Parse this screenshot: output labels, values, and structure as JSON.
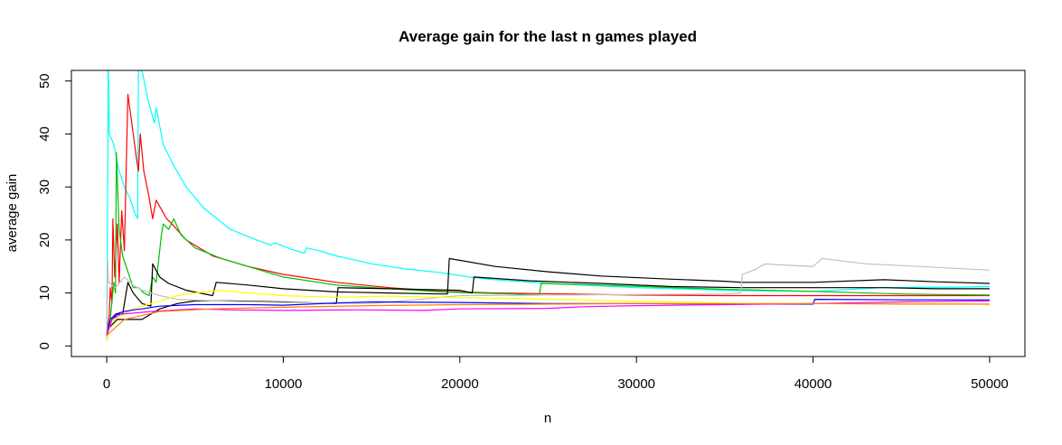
{
  "chart_data": {
    "type": "line",
    "title": "Average gain for the last n games played",
    "xlabel": "n",
    "ylabel": "average gain",
    "xlim": [
      -2000,
      52000
    ],
    "ylim": [
      -2,
      52
    ],
    "xticks": [
      "0",
      "10000",
      "20000",
      "30000",
      "40000",
      "50000"
    ],
    "xtick_values": [
      0,
      10000,
      20000,
      30000,
      40000,
      50000
    ],
    "yticks": [
      "0",
      "10",
      "20",
      "30",
      "40",
      "50"
    ],
    "ytick_values": [
      0,
      10,
      20,
      30,
      40,
      50
    ],
    "grid": false,
    "series": [
      {
        "color": "#00ffff",
        "points": [
          [
            0,
            1
          ],
          [
            50,
            30
          ],
          [
            90,
            55
          ],
          [
            100,
            52
          ],
          [
            150,
            40
          ],
          [
            400,
            38
          ],
          [
            700,
            33
          ],
          [
            1000,
            30
          ],
          [
            1300,
            28
          ],
          [
            1600,
            25
          ],
          [
            1750,
            24
          ],
          [
            1800,
            52
          ],
          [
            2000,
            52
          ],
          [
            2300,
            47
          ],
          [
            2700,
            42
          ],
          [
            2800,
            45
          ],
          [
            3200,
            38
          ],
          [
            3800,
            34
          ],
          [
            4500,
            30
          ],
          [
            5500,
            26
          ],
          [
            7000,
            22
          ],
          [
            8500,
            20
          ],
          [
            9300,
            19
          ],
          [
            9500,
            19.5
          ],
          [
            10500,
            18.2
          ],
          [
            11200,
            17.5
          ],
          [
            11300,
            18.5
          ],
          [
            12000,
            18
          ],
          [
            13000,
            17
          ],
          [
            15000,
            15.5
          ],
          [
            17000,
            14.5
          ],
          [
            19000,
            13.8
          ],
          [
            20500,
            13
          ],
          [
            22000,
            12.5
          ],
          [
            25000,
            11.8
          ],
          [
            30000,
            11
          ],
          [
            35000,
            10.5
          ],
          [
            40000,
            10.3
          ],
          [
            44000,
            11
          ],
          [
            48000,
            11.1
          ],
          [
            50000,
            11.2
          ]
        ]
      },
      {
        "color": "#ff0000",
        "points": [
          [
            0,
            2
          ],
          [
            150,
            6
          ],
          [
            200,
            11
          ],
          [
            300,
            8
          ],
          [
            350,
            24
          ],
          [
            450,
            13
          ],
          [
            600,
            23
          ],
          [
            700,
            12
          ],
          [
            850,
            25.5
          ],
          [
            1000,
            18
          ],
          [
            1200,
            47.5
          ],
          [
            1500,
            40
          ],
          [
            1700,
            35
          ],
          [
            1800,
            33
          ],
          [
            1900,
            40
          ],
          [
            2100,
            33
          ],
          [
            2400,
            28
          ],
          [
            2600,
            24
          ],
          [
            2800,
            27.5
          ],
          [
            3400,
            24
          ],
          [
            3700,
            23
          ],
          [
            4500,
            20
          ],
          [
            6000,
            17
          ],
          [
            8000,
            15
          ],
          [
            10000,
            13.5
          ],
          [
            13000,
            12
          ],
          [
            16000,
            11
          ],
          [
            19000,
            10.3
          ],
          [
            22000,
            10
          ],
          [
            26000,
            9.8
          ],
          [
            30000,
            9.6
          ],
          [
            35000,
            9.5
          ],
          [
            40000,
            9.5
          ],
          [
            45000,
            9.5
          ],
          [
            50000,
            9.5
          ]
        ]
      },
      {
        "color": "#00c000",
        "points": [
          [
            0,
            2
          ],
          [
            200,
            5
          ],
          [
            400,
            12
          ],
          [
            500,
            10
          ],
          [
            550,
            36.5
          ],
          [
            700,
            22
          ],
          [
            900,
            17
          ],
          [
            1200,
            14
          ],
          [
            1500,
            11
          ],
          [
            1800,
            11
          ],
          [
            2100,
            10
          ],
          [
            2400,
            9.5
          ],
          [
            2600,
            13
          ],
          [
            2800,
            12
          ],
          [
            3100,
            21
          ],
          [
            3200,
            23
          ],
          [
            3500,
            22
          ],
          [
            3800,
            24
          ],
          [
            4200,
            21
          ],
          [
            5000,
            18.5
          ],
          [
            6500,
            16.5
          ],
          [
            8000,
            15
          ],
          [
            10000,
            13
          ],
          [
            13000,
            11.5
          ],
          [
            16000,
            10.8
          ],
          [
            19000,
            10.2
          ],
          [
            21000,
            10
          ],
          [
            23000,
            9.8
          ],
          [
            24500,
            9.6
          ],
          [
            24600,
            11.8
          ],
          [
            28000,
            11.5
          ],
          [
            32000,
            11
          ],
          [
            36000,
            10.6
          ],
          [
            40000,
            10.3
          ],
          [
            45000,
            9.8
          ],
          [
            50000,
            9.6
          ]
        ]
      },
      {
        "color": "#000000",
        "points": [
          [
            0,
            2
          ],
          [
            300,
            5
          ],
          [
            600,
            6
          ],
          [
            900,
            6
          ],
          [
            1200,
            12
          ],
          [
            1500,
            10
          ],
          [
            2000,
            8
          ],
          [
            2500,
            7.5
          ],
          [
            2600,
            15.5
          ],
          [
            3000,
            13
          ],
          [
            3500,
            11.8
          ],
          [
            4500,
            10.5
          ],
          [
            6000,
            9.5
          ],
          [
            6200,
            12
          ],
          [
            8000,
            11.5
          ],
          [
            10000,
            10.8
          ],
          [
            13000,
            10.2
          ],
          [
            16000,
            10
          ],
          [
            19000,
            9.8
          ],
          [
            19300,
            9.8
          ],
          [
            19400,
            16.5
          ],
          [
            22000,
            15
          ],
          [
            25000,
            14
          ],
          [
            28000,
            13.2
          ],
          [
            32000,
            12.6
          ],
          [
            35000,
            12.2
          ],
          [
            36000,
            12
          ],
          [
            40000,
            12
          ],
          [
            44000,
            12.5
          ],
          [
            47000,
            12.1
          ],
          [
            50000,
            11.8
          ]
        ]
      },
      {
        "color": "#000000",
        "points": [
          [
            0,
            3
          ],
          [
            300,
            4
          ],
          [
            600,
            5
          ],
          [
            1000,
            5
          ],
          [
            1500,
            5
          ],
          [
            2000,
            5
          ],
          [
            2500,
            6
          ],
          [
            3000,
            7
          ],
          [
            4000,
            8
          ],
          [
            5000,
            8.5
          ],
          [
            7000,
            8.5
          ],
          [
            10000,
            8.3
          ],
          [
            13000,
            8
          ],
          [
            13100,
            11
          ],
          [
            16000,
            10.8
          ],
          [
            20000,
            10.5
          ],
          [
            20700,
            10
          ],
          [
            20800,
            13
          ],
          [
            24000,
            12.3
          ],
          [
            28000,
            11.8
          ],
          [
            32000,
            11.2
          ],
          [
            36000,
            11
          ],
          [
            40000,
            11
          ],
          [
            44000,
            11
          ],
          [
            47000,
            10.8
          ],
          [
            50000,
            10.8
          ]
        ]
      },
      {
        "color": "#c0c0c0",
        "points": [
          [
            0,
            1
          ],
          [
            50,
            16
          ],
          [
            100,
            12
          ],
          [
            500,
            11
          ],
          [
            1000,
            13
          ],
          [
            1500,
            11.5
          ],
          [
            2000,
            10.5
          ],
          [
            3000,
            9.5
          ],
          [
            4000,
            8.8
          ],
          [
            6000,
            8.5
          ],
          [
            10000,
            8.2
          ],
          [
            15000,
            8
          ],
          [
            20000,
            9.5
          ],
          [
            30000,
            9.7
          ],
          [
            35000,
            9.8
          ],
          [
            35900,
            10
          ],
          [
            36000,
            13.5
          ],
          [
            36800,
            14.5
          ],
          [
            37000,
            15
          ],
          [
            37300,
            15.5
          ],
          [
            38000,
            15.3
          ],
          [
            40000,
            15
          ],
          [
            40500,
            16.5
          ],
          [
            43000,
            15.5
          ],
          [
            46000,
            15
          ],
          [
            50000,
            14.3
          ]
        ]
      },
      {
        "color": "#ffff00",
        "points": [
          [
            0,
            1
          ],
          [
            200,
            4
          ],
          [
            500,
            5
          ],
          [
            1000,
            6
          ],
          [
            1500,
            7
          ],
          [
            2000,
            7.5
          ],
          [
            3000,
            8.5
          ],
          [
            4000,
            9.5
          ],
          [
            5000,
            10
          ],
          [
            6500,
            10.5
          ],
          [
            8000,
            10
          ],
          [
            10000,
            9.5
          ],
          [
            13000,
            9.2
          ],
          [
            16000,
            9.4
          ],
          [
            20000,
            9.1
          ],
          [
            24000,
            8.9
          ],
          [
            28000,
            8.6
          ],
          [
            30000,
            8.4
          ],
          [
            32000,
            8.3
          ],
          [
            36000,
            8
          ],
          [
            40000,
            8
          ],
          [
            44000,
            8
          ],
          [
            48000,
            8
          ],
          [
            50000,
            7.8
          ]
        ]
      },
      {
        "color": "#0000ff",
        "points": [
          [
            0,
            2
          ],
          [
            200,
            5
          ],
          [
            500,
            6
          ],
          [
            1000,
            6.5
          ],
          [
            1500,
            6.8
          ],
          [
            2000,
            7
          ],
          [
            3000,
            7.5
          ],
          [
            5000,
            7.8
          ],
          [
            8000,
            7.8
          ],
          [
            10000,
            7.7
          ],
          [
            13000,
            8.1
          ],
          [
            15000,
            8.3
          ],
          [
            20000,
            8.2
          ],
          [
            25000,
            8
          ],
          [
            30000,
            8
          ],
          [
            35000,
            7.9
          ],
          [
            40000,
            7.9
          ],
          [
            40100,
            8.8
          ],
          [
            45000,
            8.7
          ],
          [
            50000,
            8.7
          ]
        ]
      },
      {
        "color": "#ff00ff",
        "points": [
          [
            0,
            2
          ],
          [
            300,
            5
          ],
          [
            800,
            6
          ],
          [
            1500,
            6.2
          ],
          [
            2500,
            6.5
          ],
          [
            4000,
            6.8
          ],
          [
            5000,
            7
          ],
          [
            7000,
            6.8
          ],
          [
            10000,
            6.7
          ],
          [
            14000,
            6.8
          ],
          [
            18000,
            6.7
          ],
          [
            20000,
            7
          ],
          [
            25000,
            7.1
          ],
          [
            27000,
            7.4
          ],
          [
            30000,
            7.6
          ],
          [
            35000,
            7.8
          ],
          [
            40000,
            8
          ],
          [
            45000,
            8.3
          ],
          [
            50000,
            8.5
          ]
        ]
      },
      {
        "color": "#ff8000",
        "points": [
          [
            0,
            2
          ],
          [
            1000,
            5
          ],
          [
            3000,
            6.5
          ],
          [
            6000,
            7
          ],
          [
            10000,
            7.3
          ],
          [
            15000,
            7.6
          ],
          [
            20000,
            7.8
          ],
          [
            25000,
            7.9
          ],
          [
            30000,
            8
          ],
          [
            35000,
            8
          ],
          [
            40000,
            8
          ],
          [
            45000,
            7.9
          ],
          [
            50000,
            7.9
          ]
        ]
      }
    ]
  }
}
